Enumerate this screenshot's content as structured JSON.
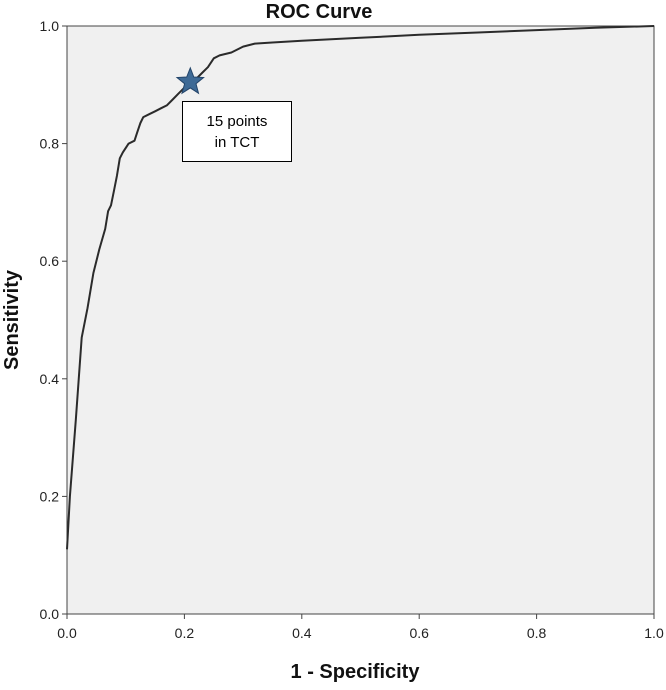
{
  "chart_data": {
    "type": "line",
    "title": "ROC Curve",
    "xlabel": "1 - Specificity",
    "ylabel": "Sensitivity",
    "xlim": [
      0.0,
      1.0
    ],
    "ylim": [
      0.0,
      1.0
    ],
    "xticks": [
      "0.0",
      "0.2",
      "0.4",
      "0.6",
      "0.8",
      "1.0"
    ],
    "yticks": [
      "0.0",
      "0.2",
      "0.4",
      "0.6",
      "0.8",
      "1.0"
    ],
    "grid": false,
    "plot_background": "#f0f0f0",
    "line_color": "#2b2b2b",
    "series": [
      {
        "x": [
          0.0,
          0.005,
          0.015,
          0.025,
          0.035,
          0.045,
          0.055,
          0.065,
          0.07,
          0.075,
          0.08,
          0.085,
          0.09,
          0.095,
          0.105,
          0.115,
          0.12,
          0.125,
          0.13,
          0.14,
          0.15,
          0.16,
          0.17,
          0.18,
          0.19,
          0.2,
          0.21,
          0.22,
          0.23,
          0.24,
          0.25,
          0.26,
          0.28,
          0.3,
          0.32,
          0.35,
          0.4,
          0.5,
          0.6,
          0.7,
          0.8,
          0.9,
          1.0
        ],
        "y": [
          0.11,
          0.2,
          0.33,
          0.47,
          0.52,
          0.58,
          0.62,
          0.655,
          0.685,
          0.695,
          0.72,
          0.745,
          0.775,
          0.785,
          0.8,
          0.805,
          0.82,
          0.835,
          0.845,
          0.85,
          0.855,
          0.86,
          0.865,
          0.875,
          0.885,
          0.895,
          0.9,
          0.91,
          0.92,
          0.93,
          0.945,
          0.95,
          0.955,
          0.965,
          0.97,
          0.972,
          0.975,
          0.98,
          0.985,
          0.989,
          0.993,
          0.997,
          1.0
        ]
      }
    ],
    "marker": {
      "shape": "star",
      "x": 0.21,
      "y": 0.905,
      "color": "#3e6a96"
    },
    "annotation": {
      "line1": "15 points",
      "line2": "in TCT"
    }
  }
}
